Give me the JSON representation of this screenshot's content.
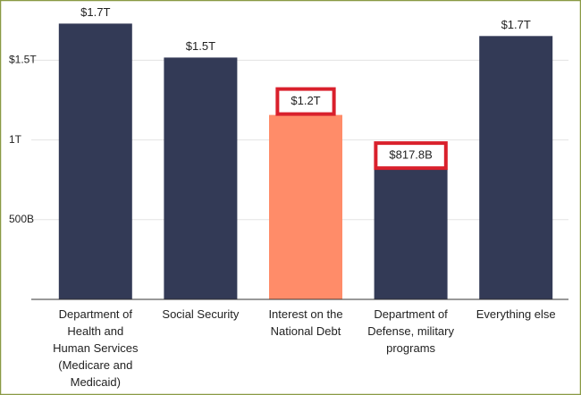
{
  "chart_data": {
    "type": "bar",
    "categories": [
      "Department of Health and Human Services (Medicare and Medicaid)",
      "Social Security",
      "Interest on the National Debt",
      "Department of Defense, military programs",
      "Everything else"
    ],
    "values": [
      1730,
      1517,
      1157,
      817.8,
      1652
    ],
    "value_labels": [
      "$1.7T",
      "$1.5T",
      "$1.2T",
      "$817.8B",
      "$1.7T"
    ],
    "colors": [
      "#333a56",
      "#333a56",
      "#ff8c69",
      "#333a56",
      "#333a56"
    ],
    "highlight": [
      false,
      false,
      true,
      true,
      false
    ],
    "highlight_color": "#d9202c",
    "ylim": [
      0,
      1850
    ],
    "yticks": [
      {
        "value": 500,
        "label": "500B"
      },
      {
        "value": 1000,
        "label": "1T"
      },
      {
        "value": 1500,
        "label": "$1.5T"
      }
    ],
    "grid": true
  }
}
